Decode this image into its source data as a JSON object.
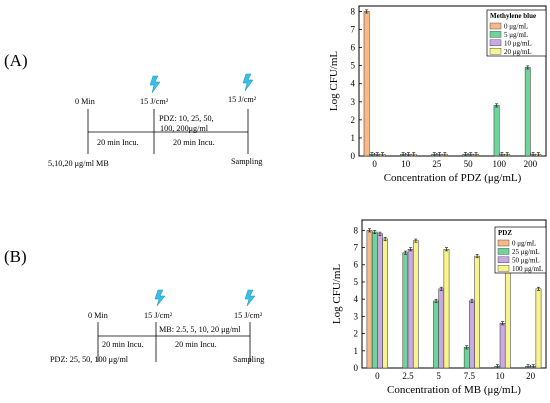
{
  "panels": {
    "a": {
      "letter": "(A)",
      "schematic": {
        "t0": "0 Min",
        "light1": "15 J/cm²",
        "light2": "15 J/cm²",
        "step1": "20 min Incu.",
        "step2": "20 min Incu.",
        "drug": "PDZ: 10, 25, 50,",
        "drug2": "100, 200μg/ml",
        "pre": "5,10,20 μg/ml MB",
        "end": "Sampling"
      }
    },
    "b": {
      "letter": "(B)",
      "schematic": {
        "t0": "0 Min",
        "light1": "15 J/cm²",
        "light2": "15 J/cm²",
        "step1": "20 min Incu.",
        "step2": "20 min Incu.",
        "drug": "MB: 2.5, 5, 10, 20 μg/ml",
        "pre": "PDZ: 25, 50, 100 μg/ml",
        "end": "Sampling"
      }
    }
  },
  "chart_data": [
    {
      "type": "bar",
      "categories": [
        "0",
        "10",
        "25",
        "50",
        "100",
        "200"
      ],
      "xlabel": "Concentration of PDZ (μg/mL)",
      "ylabel": "Log CFU/mL",
      "ylim": [
        0,
        8.3
      ],
      "yticks": [
        "0",
        "1",
        "2",
        "3",
        "4",
        "5",
        "6",
        "7",
        "8"
      ],
      "legend_title": "Methylene blue",
      "legend_position": "top-right",
      "series": [
        {
          "name": "0 μg/mL",
          "color": "#f6b98a",
          "values": [
            8.0,
            null,
            null,
            null,
            null,
            null
          ]
        },
        {
          "name": "5 μg/mL",
          "color": "#6fd49a",
          "values": [
            0.1,
            0.1,
            0.1,
            0.1,
            2.8,
            4.9
          ]
        },
        {
          "name": "10 μg/mL",
          "color": "#c9a9e3",
          "values": [
            0.1,
            0.1,
            0.1,
            0.1,
            0.1,
            0.1
          ]
        },
        {
          "name": "20 μg/mL",
          "color": "#f7f38e",
          "values": [
            0.1,
            0.1,
            0.1,
            0.1,
            0.1,
            0.1
          ]
        }
      ]
    },
    {
      "type": "bar",
      "categories": [
        "0",
        "2.5",
        "5",
        "7.5",
        "10",
        "20"
      ],
      "xlabel": "Concentration of MB (μg/mL)",
      "ylabel": "Log CFU/mL",
      "ylim": [
        0,
        8.6
      ],
      "yticks": [
        "0",
        "1",
        "2",
        "3",
        "4",
        "5",
        "6",
        "7",
        "8"
      ],
      "legend_title": "PDZ",
      "legend_position": "top-right",
      "series": [
        {
          "name": "0 μg/mL",
          "color": "#f6b98a",
          "values": [
            8.0,
            null,
            null,
            null,
            null,
            null
          ]
        },
        {
          "name": "25 μg/mL",
          "color": "#6fd49a",
          "values": [
            7.9,
            6.7,
            3.9,
            1.2,
            0.1,
            0.1
          ]
        },
        {
          "name": "50 μg/mL",
          "color": "#c9a9e3",
          "values": [
            7.8,
            6.9,
            4.6,
            3.9,
            2.6,
            0.1
          ]
        },
        {
          "name": "100 μg/mL",
          "color": "#f7f38e",
          "values": [
            7.5,
            7.4,
            6.9,
            6.5,
            5.8,
            4.6
          ]
        }
      ]
    }
  ]
}
